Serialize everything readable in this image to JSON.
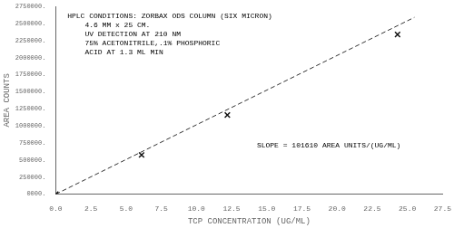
{
  "chart_data": {
    "type": "scatter",
    "xlabel": "TCP CONCENTRATION (UG/ML)",
    "ylabel": "AREA COUNTS",
    "xlim": [
      0,
      27.5
    ],
    "ylim": [
      0,
      2750000
    ],
    "xticks": [
      {
        "value": 0.0,
        "label": "0.0"
      },
      2.5,
      {
        "value": 5.0,
        "label": "5.0"
      },
      7.5,
      {
        "value": 10.0,
        "label": "10.0"
      },
      12.5,
      {
        "value": 15.0,
        "label": "15.0"
      },
      17.5,
      {
        "value": 20.0,
        "label": "20.0"
      },
      22.5,
      {
        "value": 25.0,
        "label": "25.0"
      },
      27.5
    ],
    "yticks": [
      {
        "value": 0,
        "label": "0000."
      },
      {
        "value": 250000,
        "label": "250000."
      },
      {
        "value": 500000,
        "label": "500000."
      },
      {
        "value": 750000,
        "label": "750000."
      },
      {
        "value": 1000000,
        "label": "1000000."
      },
      {
        "value": 1250000,
        "label": "1250000."
      },
      {
        "value": 1500000,
        "label": "1500000."
      },
      {
        "value": 1750000,
        "label": "1750000."
      },
      {
        "value": 2000000,
        "label": "2000000."
      },
      {
        "value": 2250000,
        "label": "2250000."
      },
      {
        "value": 2500000,
        "label": "2500000."
      },
      {
        "value": 2750000,
        "label": "2750000."
      }
    ],
    "grid": false,
    "series": [
      {
        "type": "line",
        "line_style": "dashed",
        "marker": "none",
        "color": "#333333",
        "x": [
          0.0,
          25.5
        ],
        "values": [
          0.0,
          2591055
        ]
      },
      {
        "type": "scatter",
        "marker": "x",
        "color": "#111111",
        "x": [
          0.0,
          6.1,
          12.2,
          24.3
        ],
        "values": [
          0,
          575000,
          1160000,
          2340000
        ]
      }
    ],
    "annotations": [
      {
        "lines": [
          "HPLC CONDITIONS: ZORBAX ODS COLUMN (SIX MICRON)",
          "    4.6 MM x 25 CM.",
          "    UV DETECTION AT 210 NM",
          "    75% ACETONITRILE,.1% PHOSPHORIC",
          "    ACID AT 1.3 ML MIN"
        ]
      },
      {
        "lines": [
          "SLOPE = 101610 AREA UNITS/(UG/ML)"
        ]
      }
    ]
  }
}
